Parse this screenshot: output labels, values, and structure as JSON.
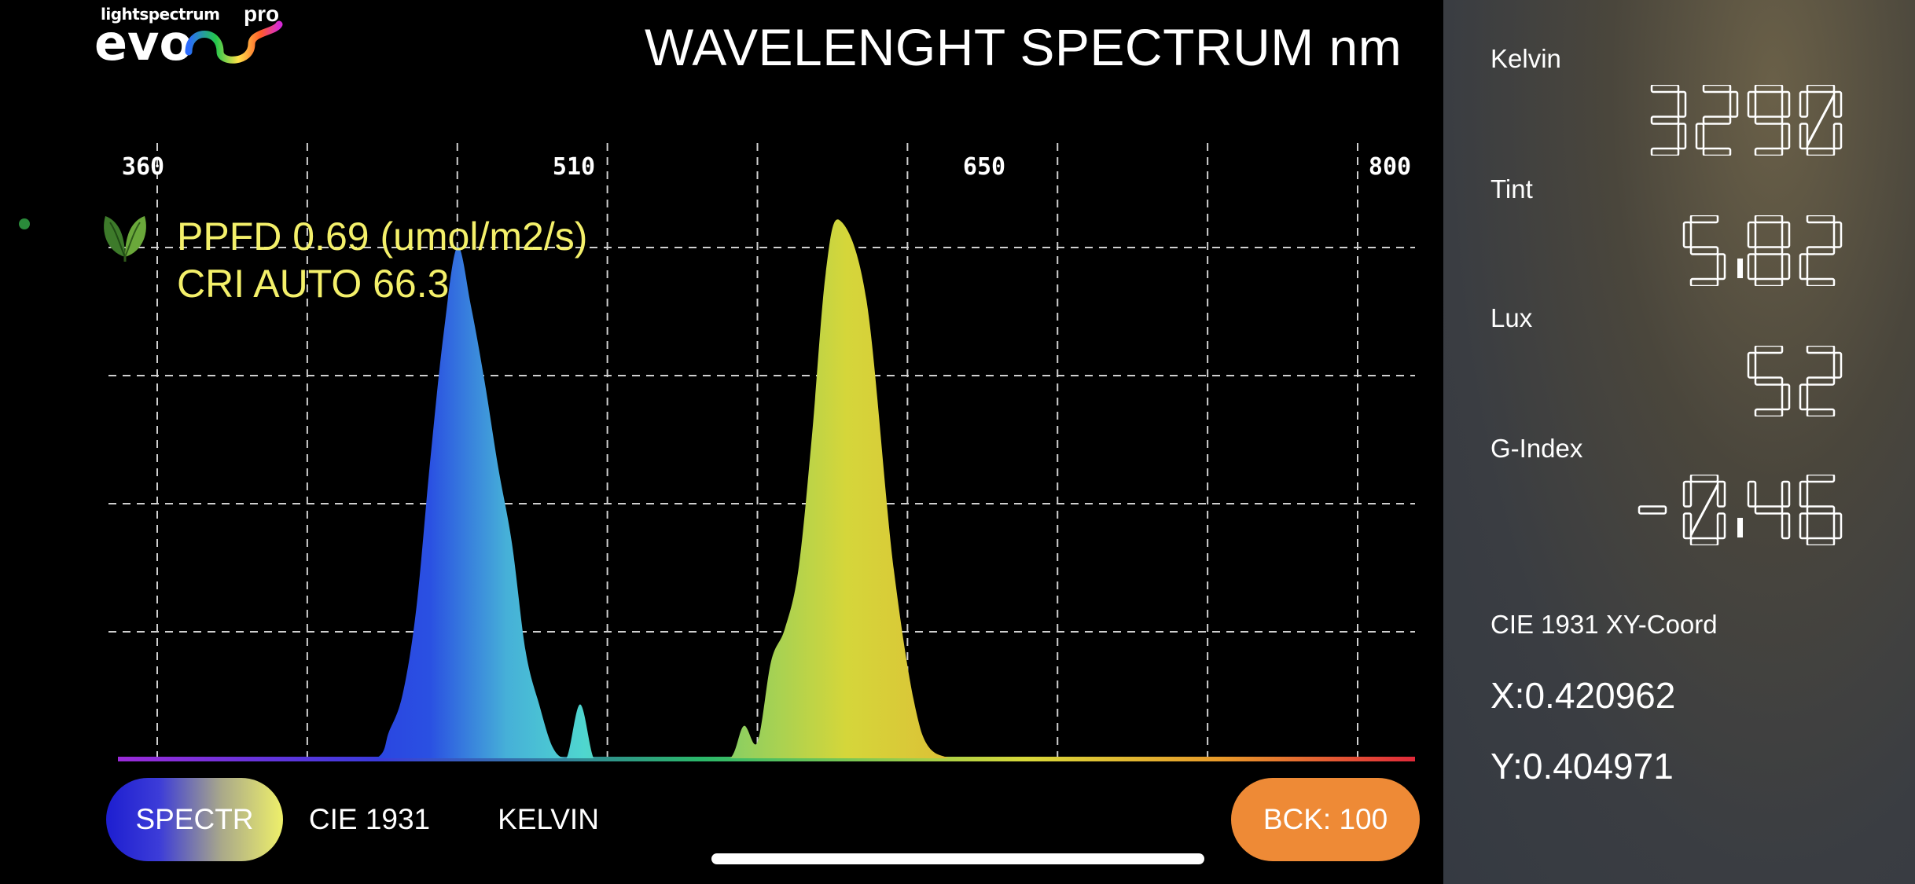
{
  "app": {
    "brand_top": "lightspectrum",
    "brand_pro": "pro",
    "brand_name": "evo"
  },
  "title": "WAVELENGHT SPECTRUM nm",
  "readouts": {
    "ppfd": "PPFD 0.69 (umol/m2/s)",
    "cri": "CRI AUTO 66.3",
    "text_color": "#f4f06a"
  },
  "chart_data": {
    "type": "area",
    "title": "WAVELENGHT SPECTRUM nm",
    "x_tick_labels": [
      "360",
      "510",
      "650",
      "800"
    ],
    "xlim": [
      360,
      800
    ],
    "grid": true,
    "x": [
      360,
      420,
      440,
      445,
      450,
      455,
      460,
      465,
      470,
      475,
      480,
      485,
      490,
      495,
      500,
      505,
      510,
      515,
      520,
      525,
      530,
      540,
      550,
      560,
      570,
      575,
      580,
      585,
      590,
      595,
      600,
      605,
      610,
      620,
      630,
      640,
      650,
      655,
      660,
      670,
      680,
      700,
      720,
      750,
      800
    ],
    "y": [
      0.0,
      0.0,
      0.0,
      0.05,
      0.12,
      0.28,
      0.55,
      0.79,
      0.95,
      0.84,
      0.7,
      0.54,
      0.4,
      0.2,
      0.1,
      0.02,
      0.0,
      0.1,
      0.0,
      0.0,
      0.0,
      0.0,
      0.0,
      0.0,
      0.0,
      0.06,
      0.03,
      0.18,
      0.24,
      0.35,
      0.6,
      0.9,
      1.0,
      0.85,
      0.35,
      0.05,
      0.0,
      0.0,
      0.0,
      0.0,
      0.0,
      0.0,
      0.0,
      0.0,
      0.0
    ]
  },
  "tabs": [
    {
      "label": "SPECTR",
      "active": true
    },
    {
      "label": "CIE 1931",
      "active": false
    },
    {
      "label": "KELVIN",
      "active": false
    }
  ],
  "bck_button": {
    "label": "BCK: 100",
    "color": "#ee8a36"
  },
  "panel": {
    "kelvin_label": "Kelvin",
    "kelvin_value": "3290",
    "tint_label": "Tint",
    "tint_value": "5.82",
    "lux_label": "Lux",
    "lux_value": "52",
    "gindex_label": "G-Index",
    "gindex_value": "-0.46",
    "cie_label": "CIE 1931 XY-Coord",
    "x_coord": "X:0.420962",
    "y_coord": "Y:0.404971"
  },
  "icons": [
    "leaf-icon",
    "status-dot-icon",
    "home-indicator"
  ]
}
